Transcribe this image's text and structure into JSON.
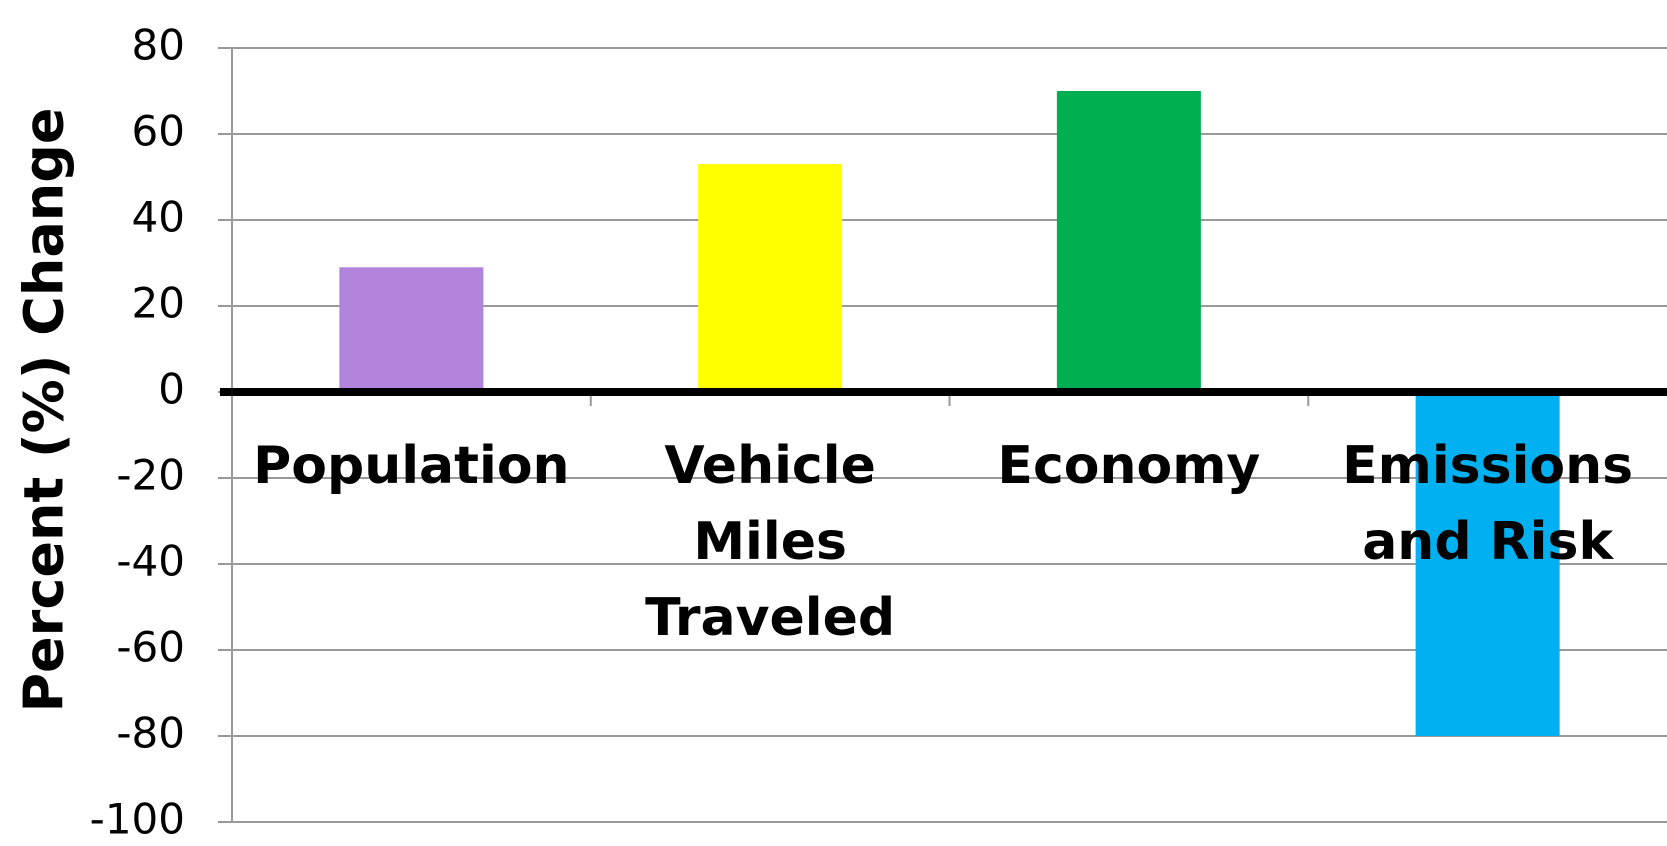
{
  "chart_data": {
    "type": "bar",
    "y_label": "Percent (%) Change",
    "categories": [
      "Population",
      "Vehicle Miles Traveled",
      "Economy",
      "Emissions and Risk"
    ],
    "values": [
      29,
      53,
      70,
      -80
    ],
    "colors": [
      "#b183db",
      "#ffff00",
      "#00b050",
      "#00b0f0"
    ],
    "ylim": [
      -100,
      80
    ],
    "yticks": [
      -100,
      -80,
      -60,
      -40,
      -20,
      0,
      20,
      40,
      60,
      80
    ],
    "grid": true
  }
}
